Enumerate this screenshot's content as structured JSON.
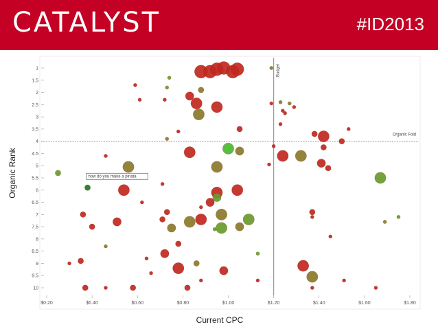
{
  "header": {
    "logo_text": "CATALYST",
    "hashtag": "#ID2013"
  },
  "chart_data": {
    "type": "scatter",
    "xlabel": "Current CPC",
    "ylabel": "Organic Rank",
    "xlim": [
      0.2,
      1.8
    ],
    "ylim": [
      10.5,
      0.5
    ],
    "x_ticks": [
      "$0.20",
      "$0.40",
      "$0.60",
      "$0.80",
      "$1.00",
      "$1.20",
      "$1.40",
      "$1.60",
      "$1.80"
    ],
    "y_ticks": [
      "1",
      "1.5",
      "2",
      "2.5",
      "3",
      "3.5",
      "4",
      "4.5",
      "5",
      "5.5",
      "6",
      "6.5",
      "7",
      "7.5",
      "8",
      "8.5",
      "9",
      "9.5",
      "10"
    ],
    "budget_line": {
      "x": 1.2,
      "label": "Budget"
    },
    "organic_fold": {
      "y": 4,
      "label": "Organic Fold"
    },
    "callout": {
      "x": 0.38,
      "y": 5.9,
      "label": "how do you make a pinata"
    },
    "colors": {
      "red": "#c0281e",
      "dark_red": "#a8321e",
      "olive": "#8b7a2a",
      "green": "#6a9a2a",
      "bright_green": "#4ab830",
      "dark_green": "#1d7a1d"
    },
    "points": [
      {
        "x": 0.88,
        "y": 1.15,
        "size": "l",
        "color": "red"
      },
      {
        "x": 0.92,
        "y": 1.15,
        "size": "l",
        "color": "red"
      },
      {
        "x": 0.95,
        "y": 1.05,
        "size": "l",
        "color": "red"
      },
      {
        "x": 0.98,
        "y": 1.0,
        "size": "l",
        "color": "red"
      },
      {
        "x": 1.02,
        "y": 1.15,
        "size": "l",
        "color": "red"
      },
      {
        "x": 1.04,
        "y": 1.05,
        "size": "l",
        "color": "red"
      },
      {
        "x": 1.19,
        "y": 1.0,
        "size": "xs",
        "color": "olive"
      },
      {
        "x": 0.74,
        "y": 1.4,
        "size": "xs",
        "color": "green"
      },
      {
        "x": 0.59,
        "y": 1.7,
        "size": "xs",
        "color": "red"
      },
      {
        "x": 0.73,
        "y": 1.8,
        "size": "xs",
        "color": "green"
      },
      {
        "x": 0.88,
        "y": 1.9,
        "size": "s",
        "color": "olive"
      },
      {
        "x": 0.83,
        "y": 2.15,
        "size": "m",
        "color": "red"
      },
      {
        "x": 0.61,
        "y": 2.3,
        "size": "xs",
        "color": "red"
      },
      {
        "x": 0.72,
        "y": 2.3,
        "size": "xs",
        "color": "red"
      },
      {
        "x": 0.86,
        "y": 2.45,
        "size": "ml",
        "color": "red"
      },
      {
        "x": 0.95,
        "y": 2.6,
        "size": "ml",
        "color": "red"
      },
      {
        "x": 0.87,
        "y": 2.9,
        "size": "ml",
        "color": "olive"
      },
      {
        "x": 1.19,
        "y": 2.45,
        "size": "xs",
        "color": "red"
      },
      {
        "x": 1.23,
        "y": 2.4,
        "size": "xs",
        "color": "olive"
      },
      {
        "x": 1.24,
        "y": 2.75,
        "size": "xs",
        "color": "red"
      },
      {
        "x": 1.25,
        "y": 2.85,
        "size": "xs",
        "color": "red"
      },
      {
        "x": 1.27,
        "y": 2.45,
        "size": "xs",
        "color": "olive"
      },
      {
        "x": 1.29,
        "y": 2.6,
        "size": "xs",
        "color": "red"
      },
      {
        "x": 1.23,
        "y": 3.3,
        "size": "xs",
        "color": "red"
      },
      {
        "x": 1.05,
        "y": 3.5,
        "size": "s",
        "color": "red"
      },
      {
        "x": 0.78,
        "y": 3.6,
        "size": "xs",
        "color": "red"
      },
      {
        "x": 0.73,
        "y": 3.9,
        "size": "xs",
        "color": "olive"
      },
      {
        "x": 1.38,
        "y": 3.7,
        "size": "s",
        "color": "red"
      },
      {
        "x": 1.42,
        "y": 3.8,
        "size": "ml",
        "color": "red"
      },
      {
        "x": 1.53,
        "y": 3.5,
        "size": "xs",
        "color": "red"
      },
      {
        "x": 1.5,
        "y": 4.0,
        "size": "s",
        "color": "red"
      },
      {
        "x": 1.2,
        "y": 4.2,
        "size": "xs",
        "color": "red"
      },
      {
        "x": 1.42,
        "y": 4.25,
        "size": "s",
        "color": "red"
      },
      {
        "x": 0.83,
        "y": 4.45,
        "size": "ml",
        "color": "red"
      },
      {
        "x": 1.0,
        "y": 4.3,
        "size": "ml",
        "color": "bright_green"
      },
      {
        "x": 1.05,
        "y": 4.4,
        "size": "m",
        "color": "olive"
      },
      {
        "x": 0.46,
        "y": 4.6,
        "size": "xs",
        "color": "red"
      },
      {
        "x": 1.24,
        "y": 4.6,
        "size": "ml",
        "color": "red"
      },
      {
        "x": 1.32,
        "y": 4.6,
        "size": "ml",
        "color": "olive"
      },
      {
        "x": 1.18,
        "y": 4.95,
        "size": "xs",
        "color": "red"
      },
      {
        "x": 1.41,
        "y": 4.9,
        "size": "m",
        "color": "red"
      },
      {
        "x": 1.44,
        "y": 5.1,
        "size": "s",
        "color": "red"
      },
      {
        "x": 0.56,
        "y": 5.05,
        "size": "ml",
        "color": "olive"
      },
      {
        "x": 0.95,
        "y": 5.05,
        "size": "ml",
        "color": "olive"
      },
      {
        "x": 0.25,
        "y": 5.3,
        "size": "s",
        "color": "green"
      },
      {
        "x": 0.38,
        "y": 5.9,
        "size": "s",
        "color": "dark_green"
      },
      {
        "x": 1.67,
        "y": 5.5,
        "size": "ml",
        "color": "green"
      },
      {
        "x": 0.71,
        "y": 5.75,
        "size": "xs",
        "color": "red"
      },
      {
        "x": 0.54,
        "y": 6.0,
        "size": "ml",
        "color": "red"
      },
      {
        "x": 0.95,
        "y": 6.1,
        "size": "ml",
        "color": "red"
      },
      {
        "x": 1.04,
        "y": 6.0,
        "size": "ml",
        "color": "red"
      },
      {
        "x": 0.92,
        "y": 6.5,
        "size": "m",
        "color": "red"
      },
      {
        "x": 0.95,
        "y": 6.3,
        "size": "m",
        "color": "green"
      },
      {
        "x": 0.62,
        "y": 6.5,
        "size": "xs",
        "color": "red"
      },
      {
        "x": 0.88,
        "y": 6.7,
        "size": "xs",
        "color": "red"
      },
      {
        "x": 0.36,
        "y": 7.0,
        "size": "s",
        "color": "red"
      },
      {
        "x": 0.73,
        "y": 6.9,
        "size": "s",
        "color": "red"
      },
      {
        "x": 0.97,
        "y": 7.0,
        "size": "ml",
        "color": "olive"
      },
      {
        "x": 1.37,
        "y": 6.9,
        "size": "s",
        "color": "red"
      },
      {
        "x": 1.37,
        "y": 7.1,
        "size": "xs",
        "color": "red"
      },
      {
        "x": 0.4,
        "y": 7.5,
        "size": "s",
        "color": "red"
      },
      {
        "x": 0.51,
        "y": 7.3,
        "size": "m",
        "color": "red"
      },
      {
        "x": 0.71,
        "y": 7.2,
        "size": "s",
        "color": "red"
      },
      {
        "x": 0.75,
        "y": 7.55,
        "size": "m",
        "color": "olive"
      },
      {
        "x": 0.83,
        "y": 7.3,
        "size": "ml",
        "color": "olive"
      },
      {
        "x": 0.88,
        "y": 7.2,
        "size": "ml",
        "color": "red"
      },
      {
        "x": 0.94,
        "y": 7.6,
        "size": "xs",
        "color": "green"
      },
      {
        "x": 0.97,
        "y": 7.55,
        "size": "ml",
        "color": "green"
      },
      {
        "x": 1.05,
        "y": 7.5,
        "size": "m",
        "color": "olive"
      },
      {
        "x": 1.09,
        "y": 7.2,
        "size": "ml",
        "color": "green"
      },
      {
        "x": 1.69,
        "y": 7.3,
        "size": "xs",
        "color": "olive"
      },
      {
        "x": 1.75,
        "y": 7.1,
        "size": "xs",
        "color": "green"
      },
      {
        "x": 1.45,
        "y": 7.9,
        "size": "xs",
        "color": "red"
      },
      {
        "x": 0.46,
        "y": 8.3,
        "size": "xs",
        "color": "olive"
      },
      {
        "x": 0.78,
        "y": 8.2,
        "size": "s",
        "color": "red"
      },
      {
        "x": 0.72,
        "y": 8.6,
        "size": "m",
        "color": "red"
      },
      {
        "x": 0.64,
        "y": 8.8,
        "size": "xs",
        "color": "red"
      },
      {
        "x": 1.13,
        "y": 8.6,
        "size": "xs",
        "color": "green"
      },
      {
        "x": 0.3,
        "y": 9.0,
        "size": "xs",
        "color": "red"
      },
      {
        "x": 0.35,
        "y": 8.9,
        "size": "s",
        "color": "red"
      },
      {
        "x": 0.86,
        "y": 9.0,
        "size": "s",
        "color": "olive"
      },
      {
        "x": 0.78,
        "y": 9.2,
        "size": "ml",
        "color": "red"
      },
      {
        "x": 0.66,
        "y": 9.4,
        "size": "xs",
        "color": "red"
      },
      {
        "x": 0.98,
        "y": 9.3,
        "size": "m",
        "color": "red"
      },
      {
        "x": 1.33,
        "y": 9.1,
        "size": "ml",
        "color": "red"
      },
      {
        "x": 1.37,
        "y": 9.55,
        "size": "ml",
        "color": "olive"
      },
      {
        "x": 0.88,
        "y": 9.7,
        "size": "xs",
        "color": "red"
      },
      {
        "x": 1.13,
        "y": 9.7,
        "size": "xs",
        "color": "red"
      },
      {
        "x": 1.51,
        "y": 9.7,
        "size": "xs",
        "color": "red"
      },
      {
        "x": 0.37,
        "y": 10.0,
        "size": "s",
        "color": "red"
      },
      {
        "x": 0.46,
        "y": 10.0,
        "size": "xs",
        "color": "red"
      },
      {
        "x": 0.58,
        "y": 10.0,
        "size": "s",
        "color": "red"
      },
      {
        "x": 0.82,
        "y": 10.0,
        "size": "s",
        "color": "red"
      },
      {
        "x": 1.37,
        "y": 10.0,
        "size": "xs",
        "color": "red"
      },
      {
        "x": 1.65,
        "y": 10.0,
        "size": "xs",
        "color": "red"
      }
    ]
  }
}
